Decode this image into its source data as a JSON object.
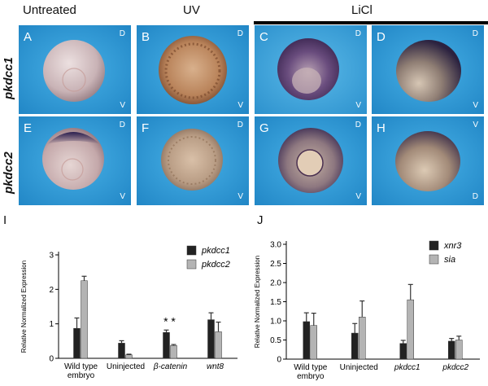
{
  "headers": {
    "untreated": "Untreated",
    "uv": "UV",
    "licl": "LiCl"
  },
  "rows": [
    "pkdcc1",
    "pkdcc2"
  ],
  "panels": [
    {
      "letter": "A",
      "top_label": "D",
      "bottom_label": "V"
    },
    {
      "letter": "B",
      "top_label": "D",
      "bottom_label": "V"
    },
    {
      "letter": "C",
      "top_label": "D",
      "bottom_label": "V"
    },
    {
      "letter": "D",
      "top_label": "D",
      "bottom_label": "V"
    },
    {
      "letter": "E",
      "top_label": "D",
      "bottom_label": "V"
    },
    {
      "letter": "F",
      "top_label": "D",
      "bottom_label": "V"
    },
    {
      "letter": "G",
      "top_label": "D",
      "bottom_label": "V"
    },
    {
      "letter": "H",
      "top_label": "V",
      "bottom_label": "D"
    }
  ],
  "colors": {
    "background_blue": "#2f9fdc",
    "dark_bar": "#222222",
    "light_bar": "#b4b4b4"
  },
  "chart_data": [
    {
      "label": "I",
      "type": "bar",
      "ylabel": "Relative Normalized Expression",
      "ylim": [
        0,
        3
      ],
      "yticks": [
        "0",
        "1",
        "2",
        "3"
      ],
      "categories": [
        "Wild type embryo",
        "Uninjected",
        "β-catenin",
        "wnt8"
      ],
      "series": [
        {
          "name": "pkdcc1",
          "values": [
            0.87,
            0.44,
            0.75,
            1.12
          ],
          "errors": [
            0.3,
            0.07,
            0.07,
            0.2
          ]
        },
        {
          "name": "pkdcc2",
          "values": [
            2.25,
            0.1,
            0.37,
            0.77
          ],
          "errors": [
            0.13,
            0.02,
            0.03,
            0.28
          ]
        }
      ],
      "annotation": "* *"
    },
    {
      "label": "J",
      "type": "bar",
      "ylabel": "Relative Normalized Expression",
      "ylim": [
        0,
        3
      ],
      "yticks": [
        "0",
        "0.5",
        "1.0",
        "1.5",
        "2.0",
        "2.5",
        "3.0"
      ],
      "categories": [
        "Wild type embryo",
        "Uninjected",
        "pkdcc1",
        "pkdcc2"
      ],
      "series": [
        {
          "name": "xnr3",
          "values": [
            0.98,
            0.68,
            0.41,
            0.47
          ],
          "errors": [
            0.23,
            0.25,
            0.08,
            0.07
          ]
        },
        {
          "name": "sia",
          "values": [
            0.88,
            1.1,
            1.55,
            0.5
          ],
          "errors": [
            0.32,
            0.42,
            0.4,
            0.1
          ]
        }
      ]
    }
  ]
}
